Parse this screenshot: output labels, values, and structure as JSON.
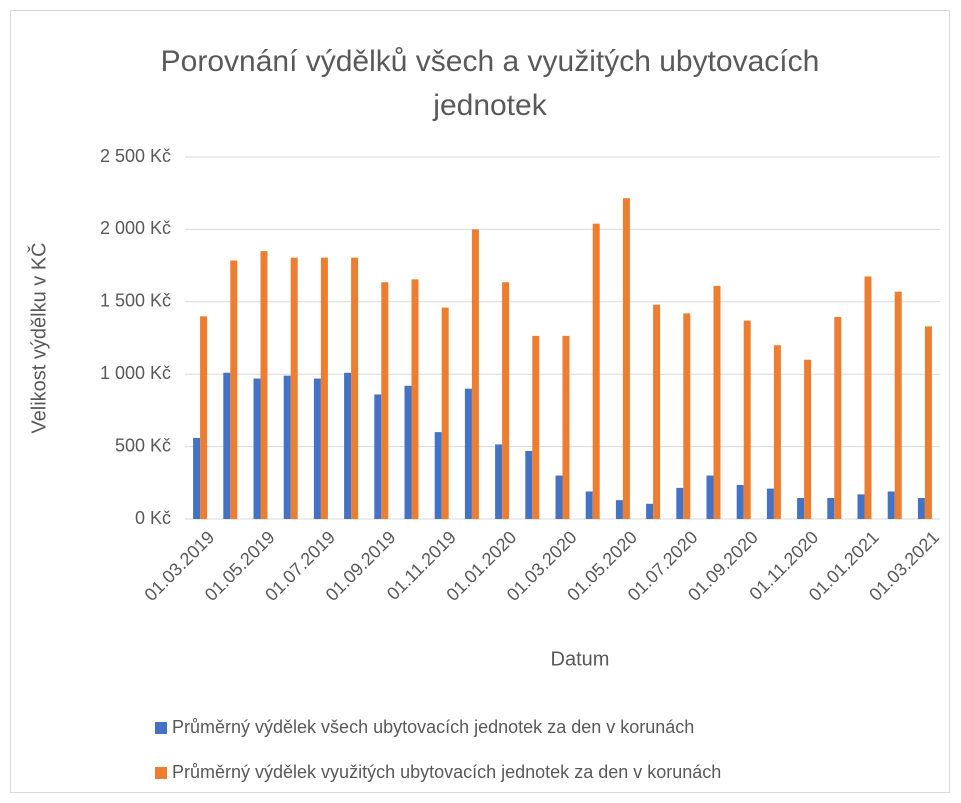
{
  "chart_data": {
    "type": "bar",
    "title": "Porovnání výdělků všech a využitých ubytovacích jednotek",
    "x_label": "Datum",
    "y_label": "Velikost výdělku v KČ",
    "categories": [
      "01.03.2019",
      null,
      "01.05.2019",
      null,
      "01.07.2019",
      null,
      "01.09.2019",
      null,
      "01.11.2019",
      null,
      "01.01.2020",
      null,
      "01.03.2020",
      null,
      "01.05.2020",
      null,
      "01.07.2020",
      null,
      "01.09.2020",
      null,
      "01.11.2020",
      null,
      "01.01.2021",
      null,
      "01.03.2021"
    ],
    "series": [
      {
        "name": "Průměrný výdělek všech ubytovacích jednotek za den v korunách",
        "color": "#4472c4",
        "values": [
          560,
          1010,
          970,
          990,
          970,
          1010,
          860,
          920,
          600,
          900,
          515,
          470,
          300,
          190,
          130,
          105,
          215,
          300,
          235,
          210,
          145,
          145,
          170,
          190,
          145
        ]
      },
      {
        "name": "Průměrný výdělek využitých ubytovacích jednotek za den v korunách",
        "color": "#ed7d31",
        "values": [
          1400,
          1785,
          1850,
          1805,
          1805,
          1805,
          1635,
          1655,
          1460,
          2000,
          1635,
          1265,
          1265,
          2040,
          2215,
          1480,
          1420,
          1610,
          1370,
          1200,
          1100,
          1395,
          1675,
          1570,
          1330
        ]
      }
    ],
    "ylim": [
      0,
      2500
    ],
    "yticks": [
      {
        "value": 0,
        "label": "0 Kč"
      },
      {
        "value": 500,
        "label": "500 Kč"
      },
      {
        "value": 1000,
        "label": "1 000 Kč"
      },
      {
        "value": 1500,
        "label": "1 500 Kč"
      },
      {
        "value": 2000,
        "label": "2 000 Kč"
      },
      {
        "value": 2500,
        "label": "2 500 Kč"
      }
    ],
    "grid": true,
    "legend": "bottom"
  }
}
